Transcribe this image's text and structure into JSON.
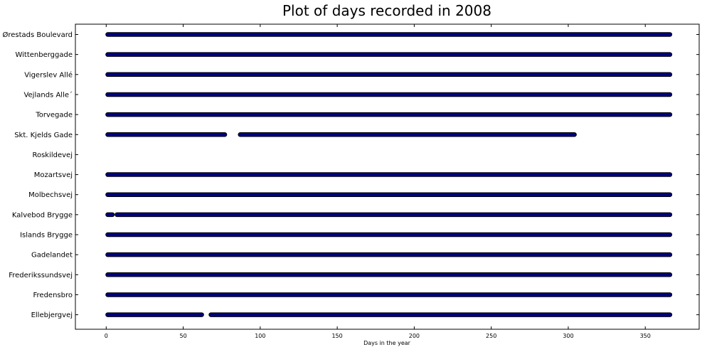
{
  "chart_data": {
    "type": "scatter",
    "title": "Plot of days recorded in 2008",
    "xlabel": "Days in the year",
    "ylabel": "",
    "xlim": [
      -20,
      385
    ],
    "xticks": [
      0,
      50,
      100,
      150,
      200,
      250,
      300,
      350
    ],
    "grid": false,
    "legend": "none",
    "marker_color": "#000080",
    "categories": [
      "Ellebjergvej",
      "Fredensbro",
      "Frederikssundsvej",
      "Gadelandet",
      "Islands Brygge",
      "Kalvebod Brygge",
      "Molbechsvej",
      "Mozartsvej",
      "Roskildevej",
      "Skt. Kjelds Gade",
      "Torvegade",
      "Vejlands Alle´",
      "Vigerslev Allé",
      "Wittenberggade",
      "Ørestads Boulevard"
    ],
    "series": [
      {
        "category": "Ellebjergvej",
        "ranges": [
          [
            1,
            62
          ],
          [
            68,
            366
          ]
        ]
      },
      {
        "category": "Fredensbro",
        "ranges": [
          [
            1,
            366
          ]
        ]
      },
      {
        "category": "Frederikssundsvej",
        "ranges": [
          [
            1,
            366
          ]
        ]
      },
      {
        "category": "Gadelandet",
        "ranges": [
          [
            1,
            366
          ]
        ]
      },
      {
        "category": "Islands Brygge",
        "ranges": [
          [
            1,
            366
          ]
        ]
      },
      {
        "category": "Kalvebod Brygge",
        "ranges": [
          [
            1,
            4
          ],
          [
            7,
            366
          ]
        ]
      },
      {
        "category": "Molbechsvej",
        "ranges": [
          [
            1,
            366
          ]
        ]
      },
      {
        "category": "Mozartsvej",
        "ranges": [
          [
            1,
            366
          ]
        ]
      },
      {
        "category": "Roskildevej",
        "ranges": []
      },
      {
        "category": "Skt. Kjelds Gade",
        "ranges": [
          [
            1,
            77
          ],
          [
            87,
            304
          ]
        ]
      },
      {
        "category": "Torvegade",
        "ranges": [
          [
            1,
            366
          ]
        ]
      },
      {
        "category": "Vejlands Alle´",
        "ranges": [
          [
            1,
            366
          ]
        ]
      },
      {
        "category": "Vigerslev Allé",
        "ranges": [
          [
            1,
            366
          ]
        ]
      },
      {
        "category": "Wittenberggade",
        "ranges": [
          [
            1,
            366
          ]
        ]
      },
      {
        "category": "Ørestads Boulevard",
        "ranges": [
          [
            1,
            366
          ]
        ]
      }
    ]
  }
}
